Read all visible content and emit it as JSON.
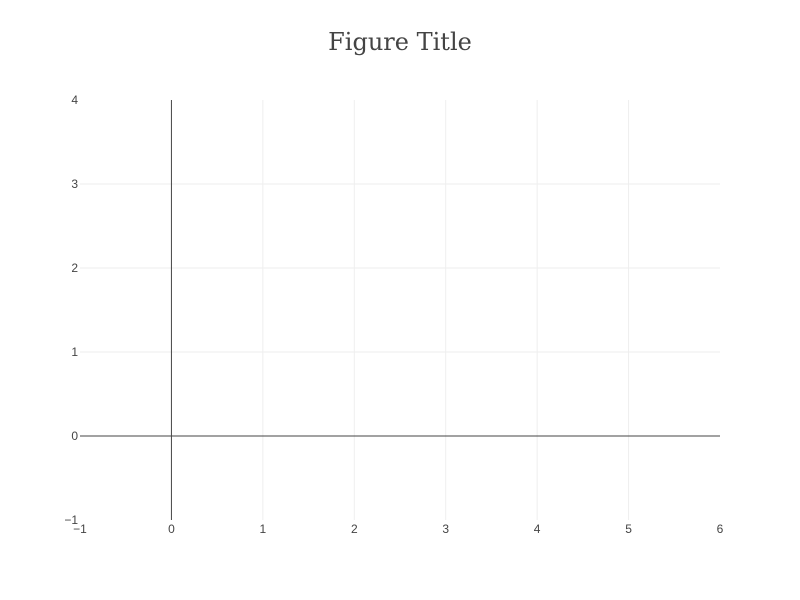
{
  "chart_data": {
    "type": "scatter",
    "title": "Figure Title",
    "xlabel": "",
    "ylabel": "",
    "xlim": [
      -1,
      6
    ],
    "ylim": [
      -1,
      4
    ],
    "x_ticks": [
      -1,
      0,
      1,
      2,
      3,
      4,
      5,
      6
    ],
    "y_ticks": [
      -1,
      0,
      1,
      2,
      3,
      4
    ],
    "x_tick_labels": [
      "−1",
      "0",
      "1",
      "2",
      "3",
      "4",
      "5",
      "6"
    ],
    "y_tick_labels": [
      "−1",
      "0",
      "1",
      "2",
      "3",
      "4"
    ],
    "grid": true,
    "zeroline": true,
    "series": []
  },
  "colors": {
    "grid": "#eeeeee",
    "zeroline": "#444444",
    "text": "#444444",
    "background": "#ffffff"
  }
}
